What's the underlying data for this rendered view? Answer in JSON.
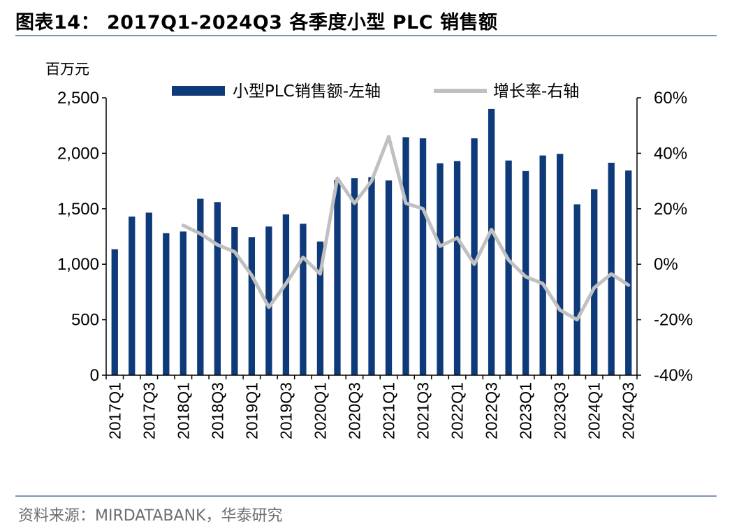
{
  "title": "图表14： 2017Q1-2024Q3 各季度小型 PLC 销售额",
  "source": "资料来源：MIRDATABANK，华泰研究",
  "colors": {
    "bar": "#0f3a7a",
    "line": "#c0c0c0",
    "rule": "#7f95b8"
  },
  "chart_data": {
    "type": "bar",
    "title": "2017Q1-2024Q3 各季度小型 PLC 销售额",
    "y_left_unit": "百万元",
    "ylim_left": [
      0,
      2500
    ],
    "ylim_right": [
      -40,
      60
    ],
    "y_left_ticks": [
      0,
      500,
      1000,
      1500,
      2000,
      2500
    ],
    "y_left_tick_labels": [
      "0",
      "500",
      "1,000",
      "1,500",
      "2,000",
      "2,500"
    ],
    "y_right_ticks": [
      -40,
      -20,
      0,
      20,
      40,
      60
    ],
    "y_right_tick_labels": [
      "-40%",
      "-20%",
      "0%",
      "20%",
      "40%",
      "60%"
    ],
    "x_tick_labels": [
      "2017Q1",
      "2017Q3",
      "2018Q1",
      "2018Q3",
      "2019Q1",
      "2019Q3",
      "2020Q1",
      "2020Q3",
      "2021Q1",
      "2021Q3",
      "2022Q1",
      "2022Q3",
      "2023Q1",
      "2023Q3",
      "2024Q1",
      "2024Q3"
    ],
    "categories": [
      "2017Q1",
      "2017Q2",
      "2017Q3",
      "2017Q4",
      "2018Q1",
      "2018Q2",
      "2018Q3",
      "2018Q4",
      "2019Q1",
      "2019Q2",
      "2019Q3",
      "2019Q4",
      "2020Q1",
      "2020Q2",
      "2020Q3",
      "2020Q4",
      "2021Q1",
      "2021Q2",
      "2021Q3",
      "2021Q4",
      "2022Q1",
      "2022Q2",
      "2022Q3",
      "2022Q4",
      "2023Q1",
      "2023Q2",
      "2023Q3",
      "2023Q4",
      "2024Q1",
      "2024Q2",
      "2024Q3"
    ],
    "series": [
      {
        "name": "小型PLC销售额-左轴",
        "type": "bar",
        "axis": "left",
        "values": [
          1135,
          1430,
          1465,
          1280,
          1295,
          1590,
          1560,
          1335,
          1245,
          1340,
          1450,
          1365,
          1205,
          1760,
          1775,
          1785,
          1755,
          2145,
          2135,
          1910,
          1930,
          2135,
          2400,
          1935,
          1840,
          1980,
          1995,
          1540,
          1675,
          1915,
          1845
        ]
      },
      {
        "name": "增长率-右轴",
        "type": "line",
        "axis": "right",
        "values": [
          null,
          null,
          null,
          null,
          14,
          11,
          7,
          4.5,
          -4,
          -15.5,
          -7,
          2.5,
          -3.5,
          31,
          22,
          30,
          46,
          22,
          20,
          6.5,
          9.5,
          0,
          12.5,
          1.5,
          -4.5,
          -7,
          -16.5,
          -20,
          -8.5,
          -3.5,
          -7.5
        ]
      }
    ],
    "legend_position": "top"
  }
}
